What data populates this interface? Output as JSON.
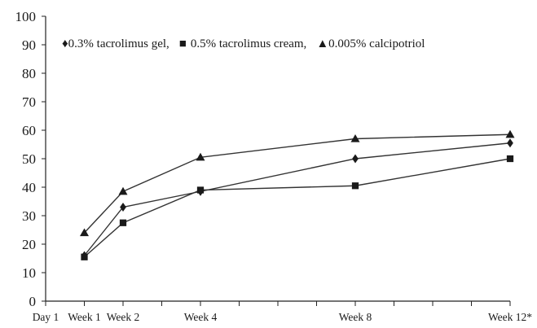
{
  "chart_data": {
    "type": "line",
    "title": "",
    "xlabel": "",
    "ylabel": "",
    "ylim": [
      0,
      100
    ],
    "yticks": [
      "0",
      "10",
      "20",
      "30",
      "40",
      "50",
      "60",
      "70",
      "80",
      "90",
      "100"
    ],
    "x_days": [
      0,
      7,
      14,
      28,
      56,
      84
    ],
    "xticks": [
      {
        "day": 0,
        "label": "Day 1"
      },
      {
        "day": 7,
        "label": "Week 1"
      },
      {
        "day": 14,
        "label": "Week 2"
      },
      {
        "day": 28,
        "label": "Week 4"
      },
      {
        "day": 56,
        "label": "Week 8"
      },
      {
        "day": 84,
        "label": "Week 12*"
      }
    ],
    "minor_tick_days": [
      21,
      35,
      42,
      49,
      63,
      70,
      77
    ],
    "grid": false,
    "legend_position": "top",
    "series": [
      {
        "name": "0.3% tacrolimus gel,",
        "marker": "diamond",
        "legend_symbol": "♦",
        "points": [
          {
            "day": 7,
            "value": 16
          },
          {
            "day": 14,
            "value": 33
          },
          {
            "day": 28,
            "value": 38.5
          },
          {
            "day": 56,
            "value": 50
          },
          {
            "day": 84,
            "value": 55.5
          }
        ]
      },
      {
        "name": "0.5% tacrolimus cream,",
        "marker": "square",
        "legend_symbol": "■",
        "points": [
          {
            "day": 7,
            "value": 15.5
          },
          {
            "day": 14,
            "value": 27.5
          },
          {
            "day": 28,
            "value": 39
          },
          {
            "day": 56,
            "value": 40.5
          },
          {
            "day": 84,
            "value": 50
          }
        ]
      },
      {
        "name": "0.005% calcipotriol",
        "marker": "triangle",
        "legend_symbol": "▲",
        "points": [
          {
            "day": 7,
            "value": 24
          },
          {
            "day": 14,
            "value": 38.5
          },
          {
            "day": 28,
            "value": 50.5
          },
          {
            "day": 56,
            "value": 57
          },
          {
            "day": 84,
            "value": 58.5
          }
        ]
      }
    ],
    "colors": {
      "line": "#333333",
      "marker": "#1a1a1a",
      "axis": "#222222"
    }
  }
}
